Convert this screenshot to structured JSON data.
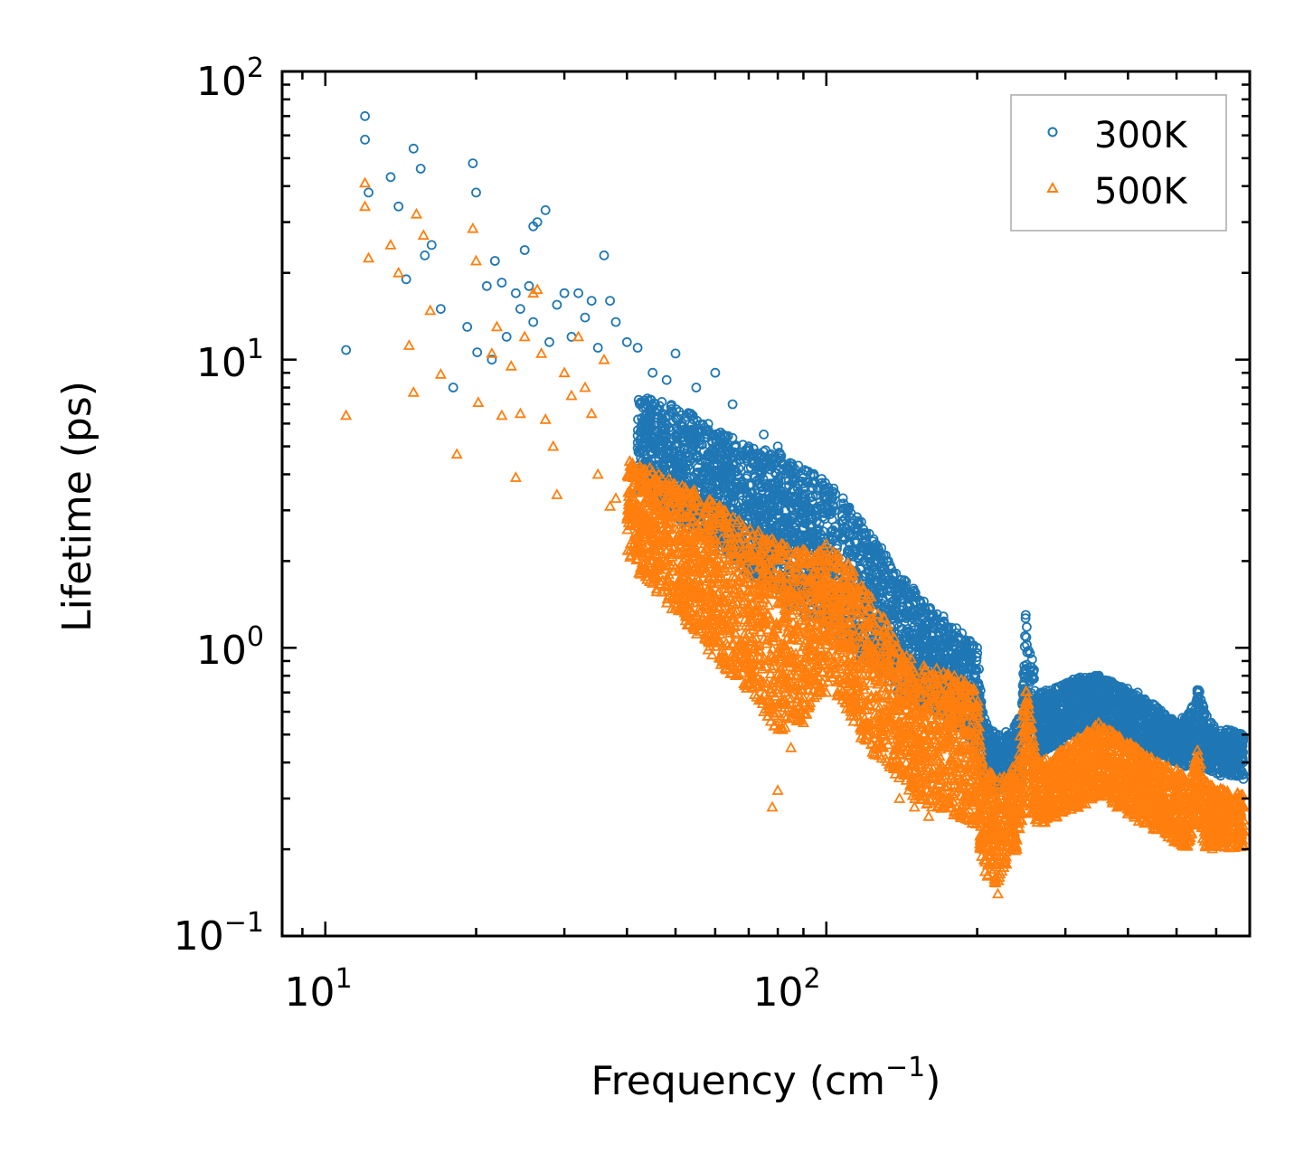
{
  "chart_data": {
    "type": "scatter",
    "xscale": "log",
    "yscale": "log",
    "xlim": [
      8.2,
      700
    ],
    "ylim": [
      0.1,
      100
    ],
    "xlabel": "Frequency (cm",
    "xlabel_sup": "−1",
    "xlabel_end": ")",
    "ylabel": "Lifetime (ps)",
    "x_ticks": [
      {
        "value": 10,
        "base": "10",
        "exp": "1"
      },
      {
        "value": 100,
        "base": "10",
        "exp": "2"
      }
    ],
    "y_ticks": [
      {
        "value": 0.1,
        "base": "10",
        "exp": "−1"
      },
      {
        "value": 1,
        "base": "10",
        "exp": "0"
      },
      {
        "value": 10,
        "base": "10",
        "exp": "1"
      },
      {
        "value": 100,
        "base": "10",
        "exp": "2"
      }
    ],
    "legend": {
      "position": "top-right"
    },
    "series": [
      {
        "name": "300K",
        "marker": "circle",
        "color": "#1f77b4",
        "sample_points": [
          [
            11.0,
            10.8
          ],
          [
            12.0,
            70
          ],
          [
            12.0,
            58
          ],
          [
            12.2,
            38
          ],
          [
            13.5,
            43
          ],
          [
            14.0,
            34
          ],
          [
            14.5,
            19
          ],
          [
            15.0,
            54
          ],
          [
            15.5,
            46
          ],
          [
            15.8,
            23
          ],
          [
            16.3,
            25
          ],
          [
            17.0,
            15
          ],
          [
            18.0,
            8.0
          ],
          [
            19.2,
            13
          ],
          [
            19.7,
            48
          ],
          [
            20.0,
            38
          ],
          [
            20.1,
            10.6
          ],
          [
            21.0,
            18
          ],
          [
            21.8,
            22
          ],
          [
            21.5,
            10.0
          ],
          [
            22.5,
            18.5
          ],
          [
            23.0,
            12
          ],
          [
            24.0,
            17
          ],
          [
            25.0,
            24
          ],
          [
            24.5,
            15
          ],
          [
            25.5,
            18
          ],
          [
            26.0,
            29
          ],
          [
            26.5,
            30
          ],
          [
            27.5,
            33
          ],
          [
            26.0,
            13.5
          ],
          [
            28.0,
            11.5
          ],
          [
            29.0,
            15.5
          ],
          [
            30.0,
            17
          ],
          [
            31.0,
            12
          ],
          [
            32.0,
            17
          ],
          [
            33.0,
            14
          ],
          [
            34.0,
            16
          ],
          [
            35.0,
            11
          ],
          [
            36.0,
            23
          ],
          [
            37.0,
            16
          ],
          [
            38.0,
            13.5
          ],
          [
            40.0,
            11.5
          ],
          [
            42.0,
            11
          ],
          [
            45.0,
            9
          ],
          [
            48.0,
            8.5
          ],
          [
            50.0,
            10.5
          ],
          [
            55.0,
            8
          ],
          [
            60.0,
            9
          ],
          [
            65.0,
            7
          ],
          [
            70.0,
            5
          ],
          [
            75.0,
            5.5
          ],
          [
            80.0,
            5
          ],
          [
            90.0,
            4
          ],
          [
            100.0,
            3.5
          ],
          [
            110.0,
            3
          ],
          [
            120.0,
            2.5
          ],
          [
            130.0,
            2
          ],
          [
            150.0,
            1.5
          ],
          [
            170.0,
            1.2
          ],
          [
            200.0,
            1.0
          ],
          [
            210.0,
            0.5
          ],
          [
            230.0,
            0.45
          ],
          [
            250.0,
            1.3
          ],
          [
            270.0,
            0.7
          ],
          [
            300.0,
            0.75
          ],
          [
            350.0,
            0.8
          ],
          [
            400.0,
            0.7
          ],
          [
            450.0,
            0.6
          ],
          [
            500.0,
            0.55
          ],
          [
            550.0,
            0.7
          ],
          [
            600.0,
            0.5
          ],
          [
            650.0,
            0.45
          ]
        ],
        "band": {
          "x": [
            42,
            50,
            60,
            70,
            80,
            90,
            100,
            110,
            120,
            130,
            140,
            150,
            160,
            170,
            180,
            190,
            200,
            205,
            210,
            220,
            235,
            245,
            250,
            255,
            265,
            280,
            300,
            320,
            350,
            380,
            420,
            460,
            500,
            530,
            550,
            570,
            600,
            640,
            680
          ],
          "upper": [
            7.5,
            7,
            5.8,
            5,
            4.8,
            4.2,
            3.8,
            3.2,
            2.6,
            2.2,
            1.8,
            1.6,
            1.4,
            1.3,
            1.2,
            1.1,
            1.0,
            0.6,
            0.55,
            0.5,
            0.52,
            0.6,
            1.35,
            1.0,
            0.7,
            0.72,
            0.75,
            0.8,
            0.8,
            0.75,
            0.7,
            0.62,
            0.55,
            0.6,
            0.75,
            0.6,
            0.52,
            0.52,
            0.5
          ],
          "lower": [
            3.5,
            2.8,
            2.2,
            1.8,
            1.5,
            1.3,
            1.2,
            1.0,
            0.9,
            0.8,
            0.7,
            0.65,
            0.6,
            0.58,
            0.55,
            0.5,
            0.45,
            0.35,
            0.33,
            0.32,
            0.33,
            0.35,
            0.5,
            0.45,
            0.42,
            0.45,
            0.48,
            0.5,
            0.52,
            0.5,
            0.45,
            0.42,
            0.4,
            0.38,
            0.45,
            0.38,
            0.36,
            0.36,
            0.35
          ]
        }
      },
      {
        "name": "500K",
        "marker": "triangle",
        "color": "#ff7f0e",
        "sample_points": [
          [
            11.0,
            6.4
          ],
          [
            12.0,
            41
          ],
          [
            12.0,
            34
          ],
          [
            12.2,
            22.5
          ],
          [
            13.5,
            25
          ],
          [
            14.0,
            20
          ],
          [
            14.7,
            11.2
          ],
          [
            15.0,
            7.7
          ],
          [
            15.2,
            32
          ],
          [
            15.7,
            27
          ],
          [
            16.2,
            14.8
          ],
          [
            17.0,
            8.9
          ],
          [
            18.3,
            4.7
          ],
          [
            19.7,
            28.5
          ],
          [
            20.0,
            22
          ],
          [
            20.2,
            7.1
          ],
          [
            21.5,
            10.5
          ],
          [
            22.0,
            13
          ],
          [
            22.5,
            6.4
          ],
          [
            23.5,
            9.5
          ],
          [
            24.5,
            6.5
          ],
          [
            24.0,
            3.9
          ],
          [
            25.0,
            12
          ],
          [
            26.0,
            17
          ],
          [
            26.5,
            17.5
          ],
          [
            27.0,
            10.5
          ],
          [
            27.5,
            6.2
          ],
          [
            28.5,
            5
          ],
          [
            29.0,
            3.4
          ],
          [
            30.0,
            9
          ],
          [
            31.0,
            7.5
          ],
          [
            32.0,
            12
          ],
          [
            33.0,
            8
          ],
          [
            34.0,
            6.5
          ],
          [
            35.0,
            4
          ],
          [
            36.0,
            10
          ],
          [
            37.0,
            3.1
          ],
          [
            38.0,
            3.3
          ],
          [
            40.0,
            2.8
          ],
          [
            42.0,
            2.3
          ],
          [
            45.0,
            2.0
          ],
          [
            48.0,
            1.7
          ],
          [
            50.0,
            1.9
          ],
          [
            55.0,
            1.5
          ],
          [
            60.0,
            1.1
          ],
          [
            65.0,
            0.95
          ],
          [
            70.0,
            0.75
          ],
          [
            75.0,
            0.6
          ],
          [
            78.0,
            0.28
          ],
          [
            80.0,
            0.32
          ],
          [
            85.0,
            0.45
          ],
          [
            90.0,
            0.55
          ],
          [
            100.0,
            0.7
          ],
          [
            110.0,
            0.68
          ],
          [
            120.0,
            0.55
          ],
          [
            130.0,
            0.45
          ],
          [
            140.0,
            0.3
          ],
          [
            150.0,
            0.28
          ],
          [
            160.0,
            0.26
          ],
          [
            170.0,
            0.3
          ],
          [
            180.0,
            0.35
          ],
          [
            200.0,
            0.3
          ],
          [
            210.0,
            0.22
          ],
          [
            220.0,
            0.14
          ],
          [
            240.0,
            0.2
          ],
          [
            250.0,
            0.55
          ],
          [
            270.0,
            0.28
          ],
          [
            300.0,
            0.35
          ],
          [
            350.0,
            0.45
          ],
          [
            400.0,
            0.35
          ],
          [
            450.0,
            0.3
          ],
          [
            500.0,
            0.25
          ],
          [
            550.0,
            0.38
          ],
          [
            600.0,
            0.22
          ],
          [
            650.0,
            0.28
          ]
        ],
        "band": {
          "x": [
            40,
            45,
            50,
            55,
            60,
            65,
            70,
            75,
            80,
            85,
            90,
            95,
            100,
            110,
            120,
            130,
            140,
            150,
            160,
            170,
            180,
            190,
            200,
            205,
            210,
            220,
            230,
            240,
            250,
            255,
            265,
            280,
            300,
            320,
            350,
            380,
            420,
            460,
            500,
            530,
            550,
            570,
            600,
            640,
            680
          ],
          "upper": [
            4.5,
            4.2,
            3.8,
            3.5,
            3.2,
            2.9,
            2.6,
            2.5,
            2.4,
            2.3,
            2.2,
            2.1,
            2.3,
            2.0,
            1.6,
            1.3,
            1.0,
            0.9,
            0.85,
            0.85,
            0.85,
            0.8,
            0.7,
            0.4,
            0.38,
            0.35,
            0.37,
            0.4,
            0.75,
            0.6,
            0.4,
            0.42,
            0.45,
            0.5,
            0.55,
            0.5,
            0.45,
            0.4,
            0.38,
            0.35,
            0.45,
            0.35,
            0.33,
            0.32,
            0.32
          ],
          "lower": [
            2.0,
            1.6,
            1.3,
            1.1,
            0.9,
            0.8,
            0.7,
            0.6,
            0.5,
            0.55,
            0.55,
            0.65,
            0.75,
            0.6,
            0.45,
            0.4,
            0.35,
            0.3,
            0.28,
            0.27,
            0.26,
            0.25,
            0.24,
            0.17,
            0.16,
            0.15,
            0.18,
            0.2,
            0.3,
            0.26,
            0.24,
            0.25,
            0.27,
            0.28,
            0.3,
            0.28,
            0.25,
            0.23,
            0.21,
            0.2,
            0.25,
            0.2,
            0.2,
            0.2,
            0.2
          ]
        }
      }
    ]
  }
}
